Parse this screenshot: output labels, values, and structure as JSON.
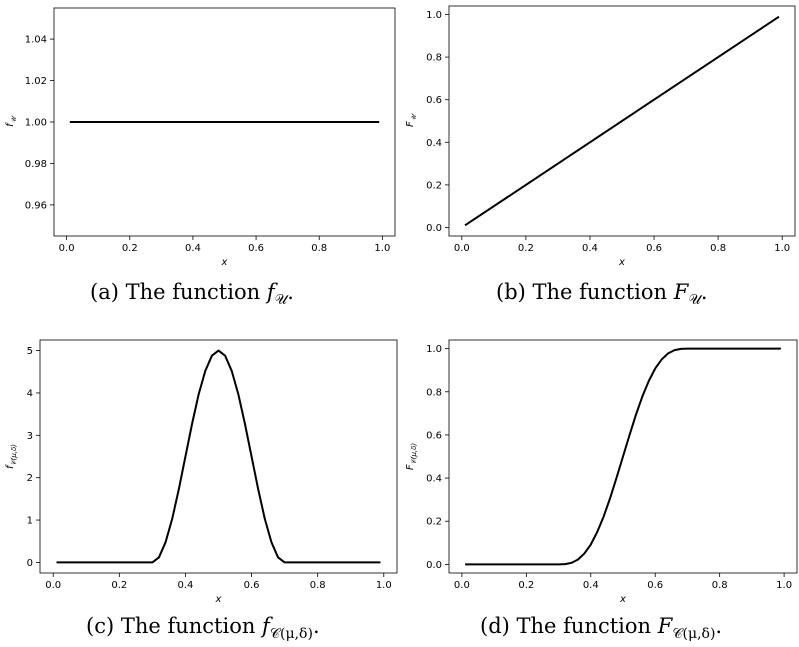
{
  "chart_data": [
    {
      "id": "a",
      "type": "line",
      "xlabel": "x",
      "ylabel_main": "f",
      "ylabel_sub": "𝒰",
      "xlim": [
        -0.04,
        1.04
      ],
      "ylim": [
        0.945,
        1.055
      ],
      "xticks": [
        0.0,
        0.2,
        0.4,
        0.6,
        0.8,
        1.0
      ],
      "xtick_labels": [
        "0.0",
        "0.2",
        "0.4",
        "0.6",
        "0.8",
        "1.0"
      ],
      "yticks": [
        0.96,
        0.98,
        1.0,
        1.02,
        1.04
      ],
      "ytick_labels": [
        "0.96",
        "0.98",
        "1.00",
        "1.02",
        "1.04"
      ],
      "series": [
        {
          "x": [
            0.01,
            0.99
          ],
          "y": [
            1.0,
            1.0
          ]
        }
      ],
      "caption": {
        "prefix": "(a) The function ",
        "sym": "f",
        "sub": "𝒰",
        "suffix": "."
      }
    },
    {
      "id": "b",
      "type": "line",
      "xlabel": "x",
      "ylabel_main": "F",
      "ylabel_sub": "𝒰",
      "xlim": [
        -0.04,
        1.04
      ],
      "ylim": [
        -0.04,
        1.04
      ],
      "xticks": [
        0.0,
        0.2,
        0.4,
        0.6,
        0.8,
        1.0
      ],
      "xtick_labels": [
        "0.0",
        "0.2",
        "0.4",
        "0.6",
        "0.8",
        "1.0"
      ],
      "yticks": [
        0.0,
        0.2,
        0.4,
        0.6,
        0.8,
        1.0
      ],
      "ytick_labels": [
        "0.0",
        "0.2",
        "0.4",
        "0.6",
        "0.8",
        "1.0"
      ],
      "series": [
        {
          "x": [
            0.01,
            0.99
          ],
          "y": [
            0.01,
            0.99
          ]
        }
      ],
      "caption": {
        "prefix": "(b) The function ",
        "sym": "F",
        "sub": "𝒰",
        "suffix": "."
      }
    },
    {
      "id": "c",
      "type": "line",
      "xlabel": "x",
      "ylabel_main": "f",
      "ylabel_sub": "𝒞(μ,δ)",
      "xlim": [
        -0.04,
        1.04
      ],
      "ylim": [
        -0.25,
        5.25
      ],
      "xticks": [
        0.0,
        0.2,
        0.4,
        0.6,
        0.8,
        1.0
      ],
      "xtick_labels": [
        "0.0",
        "0.2",
        "0.4",
        "0.6",
        "0.8",
        "1.0"
      ],
      "yticks": [
        0,
        1,
        2,
        3,
        4,
        5
      ],
      "ytick_labels": [
        "0",
        "1",
        "2",
        "3",
        "4",
        "5"
      ],
      "series": [
        {
          "x": [
            0.01,
            0.3,
            0.32,
            0.34,
            0.36,
            0.38,
            0.4,
            0.42,
            0.44,
            0.46,
            0.48,
            0.5,
            0.52,
            0.54,
            0.56,
            0.58,
            0.6,
            0.62,
            0.64,
            0.66,
            0.68,
            0.7,
            0.99
          ],
          "y": [
            0,
            0,
            0.12,
            0.48,
            1.03,
            1.73,
            2.5,
            3.27,
            3.97,
            4.52,
            4.88,
            5.0,
            4.88,
            4.52,
            3.97,
            3.27,
            2.5,
            1.73,
            1.03,
            0.48,
            0.12,
            0,
            0
          ]
        }
      ],
      "caption": {
        "prefix": "(c) The function ",
        "sym": "f",
        "sub": "𝒞(μ,δ)",
        "suffix": "."
      }
    },
    {
      "id": "d",
      "type": "line",
      "xlabel": "x",
      "ylabel_main": "F",
      "ylabel_sub": "𝒞(μ,δ)",
      "xlim": [
        -0.04,
        1.04
      ],
      "ylim": [
        -0.04,
        1.04
      ],
      "xticks": [
        0.0,
        0.2,
        0.4,
        0.6,
        0.8,
        1.0
      ],
      "xtick_labels": [
        "0.0",
        "0.2",
        "0.4",
        "0.6",
        "0.8",
        "1.0"
      ],
      "yticks": [
        0.0,
        0.2,
        0.4,
        0.6,
        0.8,
        1.0
      ],
      "ytick_labels": [
        "0.0",
        "0.2",
        "0.4",
        "0.6",
        "0.8",
        "1.0"
      ],
      "series": [
        {
          "x": [
            0.01,
            0.3,
            0.32,
            0.34,
            0.36,
            0.38,
            0.4,
            0.42,
            0.44,
            0.46,
            0.48,
            0.5,
            0.52,
            0.54,
            0.56,
            0.58,
            0.6,
            0.62,
            0.64,
            0.66,
            0.68,
            0.7,
            0.99
          ],
          "y": [
            0,
            0,
            0.001,
            0.007,
            0.022,
            0.05,
            0.092,
            0.15,
            0.222,
            0.307,
            0.402,
            0.5,
            0.598,
            0.693,
            0.778,
            0.85,
            0.908,
            0.95,
            0.978,
            0.993,
            0.999,
            1.0,
            1.0
          ]
        }
      ],
      "caption": {
        "prefix": "(d) The function ",
        "sym": "F",
        "sub": "𝒞(μ,δ)",
        "suffix": "."
      }
    }
  ]
}
